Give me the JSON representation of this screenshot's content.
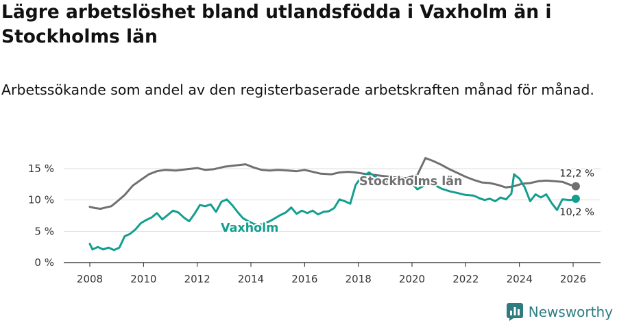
{
  "title": "Lägre arbetslöshet bland utlandsfödda i Vaxholm än i Stockholms län",
  "subtitle": "Arbetssökande som andel av den registerbaserade arbetskraften månad för månad.",
  "brand": "Newsworthy",
  "colors": {
    "vaxholm": "#139e8f",
    "stockholm": "#707070",
    "grid": "#dddddd",
    "brand": "#2e7c80"
  },
  "chart_data": {
    "type": "line",
    "title": "Lägre arbetslöshet bland utlandsfödda i Vaxholm än i Stockholms län",
    "xlabel": "",
    "ylabel": "",
    "xlim": [
      2007.5,
      2026.8
    ],
    "ylim": [
      0,
      16.5
    ],
    "grid": true,
    "x_ticks": [
      2008,
      2010,
      2012,
      2014,
      2016,
      2018,
      2020,
      2022,
      2024,
      2026
    ],
    "x_tick_labels": [
      "2008",
      "2010",
      "2012",
      "2014",
      "2016",
      "2018",
      "2020",
      "2022",
      "2024",
      "2026"
    ],
    "y_ticks": [
      0,
      5,
      10,
      15
    ],
    "y_tick_labels": [
      "0 %",
      "5 %",
      "10 %",
      "15 %"
    ],
    "series": [
      {
        "name": "Stockholms län",
        "label_position": "near 2019, above line",
        "end_label": "12,2 %",
        "points": [
          [
            2008.0,
            8.9
          ],
          [
            2008.2,
            8.7
          ],
          [
            2008.4,
            8.6
          ],
          [
            2008.6,
            8.8
          ],
          [
            2008.8,
            9.0
          ],
          [
            2009.0,
            9.7
          ],
          [
            2009.3,
            10.8
          ],
          [
            2009.6,
            12.3
          ],
          [
            2009.9,
            13.2
          ],
          [
            2010.2,
            14.1
          ],
          [
            2010.5,
            14.6
          ],
          [
            2010.8,
            14.8
          ],
          [
            2011.2,
            14.7
          ],
          [
            2011.6,
            14.9
          ],
          [
            2012.0,
            15.1
          ],
          [
            2012.3,
            14.8
          ],
          [
            2012.6,
            14.9
          ],
          [
            2013.0,
            15.3
          ],
          [
            2013.4,
            15.5
          ],
          [
            2013.8,
            15.7
          ],
          [
            2014.1,
            15.2
          ],
          [
            2014.4,
            14.8
          ],
          [
            2014.7,
            14.7
          ],
          [
            2015.0,
            14.8
          ],
          [
            2015.4,
            14.7
          ],
          [
            2015.7,
            14.6
          ],
          [
            2016.0,
            14.8
          ],
          [
            2016.3,
            14.5
          ],
          [
            2016.6,
            14.2
          ],
          [
            2017.0,
            14.1
          ],
          [
            2017.3,
            14.4
          ],
          [
            2017.6,
            14.5
          ],
          [
            2017.9,
            14.4
          ],
          [
            2018.2,
            14.2
          ],
          [
            2018.6,
            14.0
          ],
          [
            2019.0,
            13.8
          ],
          [
            2019.4,
            13.6
          ],
          [
            2019.8,
            13.5
          ],
          [
            2020.2,
            14.0
          ],
          [
            2020.5,
            16.7
          ],
          [
            2020.8,
            16.2
          ],
          [
            2021.1,
            15.6
          ],
          [
            2021.4,
            14.9
          ],
          [
            2021.7,
            14.3
          ],
          [
            2022.0,
            13.7
          ],
          [
            2022.3,
            13.2
          ],
          [
            2022.6,
            12.8
          ],
          [
            2022.9,
            12.7
          ],
          [
            2023.2,
            12.4
          ],
          [
            2023.5,
            12.0
          ],
          [
            2023.8,
            12.2
          ],
          [
            2024.1,
            12.6
          ],
          [
            2024.4,
            12.7
          ],
          [
            2024.7,
            13.0
          ],
          [
            2025.0,
            13.1
          ],
          [
            2025.3,
            13.0
          ],
          [
            2025.6,
            12.9
          ],
          [
            2025.9,
            12.4
          ],
          [
            2026.1,
            12.2
          ]
        ]
      },
      {
        "name": "Vaxholm",
        "label_position": "near 2013.5, below line",
        "end_label": "10,2 %",
        "points": [
          [
            2008.0,
            3.0
          ],
          [
            2008.1,
            2.1
          ],
          [
            2008.3,
            2.5
          ],
          [
            2008.5,
            2.1
          ],
          [
            2008.7,
            2.4
          ],
          [
            2008.9,
            2.0
          ],
          [
            2009.1,
            2.4
          ],
          [
            2009.3,
            4.2
          ],
          [
            2009.5,
            4.6
          ],
          [
            2009.7,
            5.3
          ],
          [
            2009.9,
            6.3
          ],
          [
            2010.1,
            6.8
          ],
          [
            2010.3,
            7.2
          ],
          [
            2010.5,
            7.9
          ],
          [
            2010.7,
            6.9
          ],
          [
            2010.9,
            7.6
          ],
          [
            2011.1,
            8.3
          ],
          [
            2011.3,
            8.0
          ],
          [
            2011.5,
            7.2
          ],
          [
            2011.7,
            6.6
          ],
          [
            2011.9,
            7.8
          ],
          [
            2012.1,
            9.2
          ],
          [
            2012.3,
            9.0
          ],
          [
            2012.5,
            9.3
          ],
          [
            2012.7,
            8.1
          ],
          [
            2012.9,
            9.7
          ],
          [
            2013.1,
            10.1
          ],
          [
            2013.3,
            9.2
          ],
          [
            2013.5,
            8.1
          ],
          [
            2013.7,
            7.1
          ],
          [
            2013.9,
            6.6
          ],
          [
            2014.1,
            6.2
          ],
          [
            2014.3,
            6.0
          ],
          [
            2014.5,
            6.3
          ],
          [
            2014.7,
            6.6
          ],
          [
            2014.9,
            7.1
          ],
          [
            2015.1,
            7.6
          ],
          [
            2015.3,
            8.0
          ],
          [
            2015.5,
            8.8
          ],
          [
            2015.7,
            7.8
          ],
          [
            2015.9,
            8.3
          ],
          [
            2016.1,
            7.9
          ],
          [
            2016.3,
            8.3
          ],
          [
            2016.5,
            7.7
          ],
          [
            2016.7,
            8.1
          ],
          [
            2016.9,
            8.2
          ],
          [
            2017.1,
            8.7
          ],
          [
            2017.3,
            10.1
          ],
          [
            2017.5,
            9.8
          ],
          [
            2017.7,
            9.4
          ],
          [
            2017.9,
            12.4
          ],
          [
            2018.1,
            13.6
          ],
          [
            2018.4,
            14.4
          ],
          [
            2018.8,
            13.2
          ],
          [
            2019.2,
            12.7
          ],
          [
            2019.6,
            12.4
          ],
          [
            2020.0,
            12.6
          ],
          [
            2020.2,
            11.7
          ],
          [
            2020.5,
            12.4
          ],
          [
            2020.8,
            12.5
          ],
          [
            2021.1,
            11.8
          ],
          [
            2021.4,
            11.4
          ],
          [
            2021.7,
            11.1
          ],
          [
            2022.0,
            10.8
          ],
          [
            2022.3,
            10.7
          ],
          [
            2022.5,
            10.3
          ],
          [
            2022.7,
            10.0
          ],
          [
            2022.9,
            10.2
          ],
          [
            2023.1,
            9.8
          ],
          [
            2023.3,
            10.4
          ],
          [
            2023.5,
            10.1
          ],
          [
            2023.7,
            11.0
          ],
          [
            2023.8,
            14.1
          ],
          [
            2024.0,
            13.4
          ],
          [
            2024.2,
            12.0
          ],
          [
            2024.4,
            9.8
          ],
          [
            2024.6,
            10.9
          ],
          [
            2024.8,
            10.4
          ],
          [
            2025.0,
            10.9
          ],
          [
            2025.2,
            9.5
          ],
          [
            2025.4,
            8.4
          ],
          [
            2025.6,
            10.1
          ],
          [
            2025.9,
            10.0
          ],
          [
            2026.1,
            10.2
          ]
        ]
      }
    ]
  }
}
